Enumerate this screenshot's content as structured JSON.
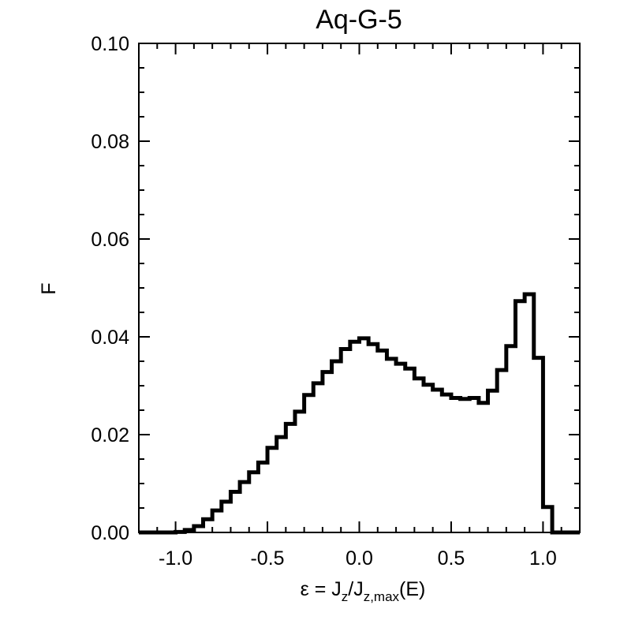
{
  "chart_data": {
    "type": "step",
    "title": "Aq-G-5",
    "ylabel": "F",
    "xlabel": {
      "prefix": "ε = ",
      "J1": "J",
      "sub1": "z",
      "slash": "/",
      "J2": "J",
      "sub2": "z,max",
      "suffix": "(E)"
    },
    "xlim": [
      -1.2,
      1.2
    ],
    "ylim": [
      0.0,
      0.1
    ],
    "x_ticks": [
      -1.0,
      -0.5,
      0.0,
      0.5,
      1.0
    ],
    "x_tick_labels": [
      "-1.0",
      "-0.5",
      "0.0",
      "0.5",
      "1.0"
    ],
    "y_ticks": [
      0.0,
      0.02,
      0.04,
      0.06,
      0.08,
      0.1
    ],
    "y_tick_labels": [
      "0.00",
      "0.02",
      "0.04",
      "0.06",
      "0.08",
      "0.10"
    ],
    "grid": false,
    "line_color": "#000000",
    "bin_width": 0.05,
    "bin_start": -1.2,
    "values": [
      0.0,
      0.0,
      0.0,
      0.0,
      0.0001,
      0.0005,
      0.0013,
      0.0027,
      0.0045,
      0.0063,
      0.0083,
      0.0103,
      0.0123,
      0.0143,
      0.0173,
      0.0195,
      0.0222,
      0.0247,
      0.0281,
      0.0305,
      0.0328,
      0.035,
      0.0375,
      0.039,
      0.0397,
      0.0385,
      0.0372,
      0.0355,
      0.0345,
      0.0335,
      0.0315,
      0.0302,
      0.0292,
      0.0282,
      0.0275,
      0.0273,
      0.0275,
      0.0265,
      0.029,
      0.0332,
      0.0381,
      0.0473,
      0.0487,
      0.0357,
      0.0052,
      0.0,
      0.0,
      0.0
    ]
  }
}
